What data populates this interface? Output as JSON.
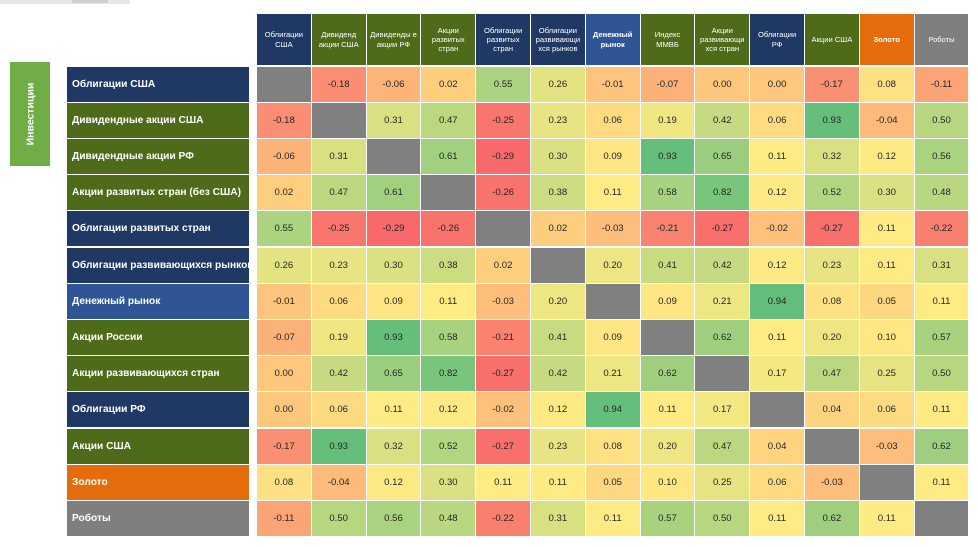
{
  "side_label": "Инвестиции",
  "chart_data": {
    "type": "heatmap",
    "title": "",
    "columns": [
      {
        "label": "Облигации США",
        "color": "#1f3864"
      },
      {
        "label": "Дивиденд акции США",
        "color": "#4e6b1a"
      },
      {
        "label": "Дивиденды е акции РФ",
        "color": "#4e6b1a"
      },
      {
        "label": "Акции развитых стран",
        "color": "#4e6b1a"
      },
      {
        "label": "Облигации развитых стран",
        "color": "#1f3864"
      },
      {
        "label": "Облигации развивающи хся рынков",
        "color": "#1f3864"
      },
      {
        "label": "Денежный рынок",
        "color": "#2f5597"
      },
      {
        "label": "Индекс ММВБ",
        "color": "#4e6b1a"
      },
      {
        "label": "Акции развивающи хся стран",
        "color": "#4e6b1a"
      },
      {
        "label": "Облигации РФ",
        "color": "#1f3864"
      },
      {
        "label": "Акции США",
        "color": "#4e6b1a"
      },
      {
        "label": "Золото",
        "color": "#e46c0a"
      },
      {
        "label": "Роботы",
        "color": "#7f7f7f"
      }
    ],
    "rows": [
      {
        "label": "Облигации США",
        "color": "#1f3864",
        "values": [
          null,
          -0.18,
          -0.06,
          0.02,
          0.55,
          0.26,
          -0.01,
          -0.07,
          0.0,
          0.0,
          -0.17,
          0.08,
          -0.11
        ]
      },
      {
        "label": "Дивидендные акции США",
        "color": "#4e6b1a",
        "values": [
          -0.18,
          null,
          0.31,
          0.47,
          -0.25,
          0.23,
          0.06,
          0.19,
          0.42,
          0.06,
          0.93,
          -0.04,
          0.5
        ]
      },
      {
        "label": "Дивидендные акции РФ",
        "color": "#4e6b1a",
        "values": [
          -0.06,
          0.31,
          null,
          0.61,
          -0.29,
          0.3,
          0.09,
          0.93,
          0.65,
          0.11,
          0.32,
          0.12,
          0.56
        ]
      },
      {
        "label": "Акции развитых стран (без США)",
        "color": "#4e6b1a",
        "values": [
          0.02,
          0.47,
          0.61,
          null,
          -0.26,
          0.38,
          0.11,
          0.58,
          0.82,
          0.12,
          0.52,
          0.3,
          0.48
        ]
      },
      {
        "label": "Облигации развитых стран",
        "color": "#1f3864",
        "values": [
          0.55,
          -0.25,
          -0.29,
          -0.26,
          null,
          0.02,
          -0.03,
          -0.21,
          -0.27,
          -0.02,
          -0.27,
          0.11,
          -0.22
        ]
      },
      {
        "label": "Облигации развивающихся рынков",
        "color": "#1f3864",
        "values": [
          0.26,
          0.23,
          0.3,
          0.38,
          0.02,
          null,
          0.2,
          0.41,
          0.42,
          0.12,
          0.23,
          0.11,
          0.31
        ]
      },
      {
        "label": "Денежный рынок",
        "color": "#2f5597",
        "values": [
          -0.01,
          0.06,
          0.09,
          0.11,
          -0.03,
          0.2,
          null,
          0.09,
          0.21,
          0.94,
          0.08,
          0.05,
          0.11
        ]
      },
      {
        "label": "Акции России",
        "color": "#4e6b1a",
        "values": [
          -0.07,
          0.19,
          0.93,
          0.58,
          -0.21,
          0.41,
          0.09,
          null,
          0.62,
          0.11,
          0.2,
          0.1,
          0.57
        ]
      },
      {
        "label": "Акции развивающихся стран",
        "color": "#4e6b1a",
        "values": [
          0.0,
          0.42,
          0.65,
          0.82,
          -0.27,
          0.42,
          0.21,
          0.62,
          null,
          0.17,
          0.47,
          0.25,
          0.5
        ]
      },
      {
        "label": "Облигации РФ",
        "color": "#1f3864",
        "values": [
          0.0,
          0.06,
          0.11,
          0.12,
          -0.02,
          0.12,
          0.94,
          0.11,
          0.17,
          null,
          0.04,
          0.06,
          0.11
        ]
      },
      {
        "label": "Акции США",
        "color": "#4e6b1a",
        "values": [
          -0.17,
          0.93,
          0.32,
          0.52,
          -0.27,
          0.23,
          0.08,
          0.2,
          0.47,
          0.04,
          null,
          -0.03,
          0.62
        ]
      },
      {
        "label": "Золото",
        "color": "#e46c0a",
        "values": [
          0.08,
          -0.04,
          0.12,
          0.3,
          0.11,
          0.11,
          0.05,
          0.1,
          0.25,
          0.06,
          -0.03,
          null,
          0.11
        ]
      },
      {
        "label": "Роботы",
        "color": "#7f7f7f",
        "values": [
          -0.11,
          0.5,
          0.56,
          0.48,
          -0.22,
          0.31,
          0.11,
          0.57,
          0.5,
          0.11,
          0.62,
          0.11,
          null
        ]
      }
    ],
    "value_range": [
      -0.29,
      0.94
    ],
    "colorscale": {
      "low": "#f8696b",
      "mid": "#ffeb84",
      "high": "#63be7b"
    }
  }
}
